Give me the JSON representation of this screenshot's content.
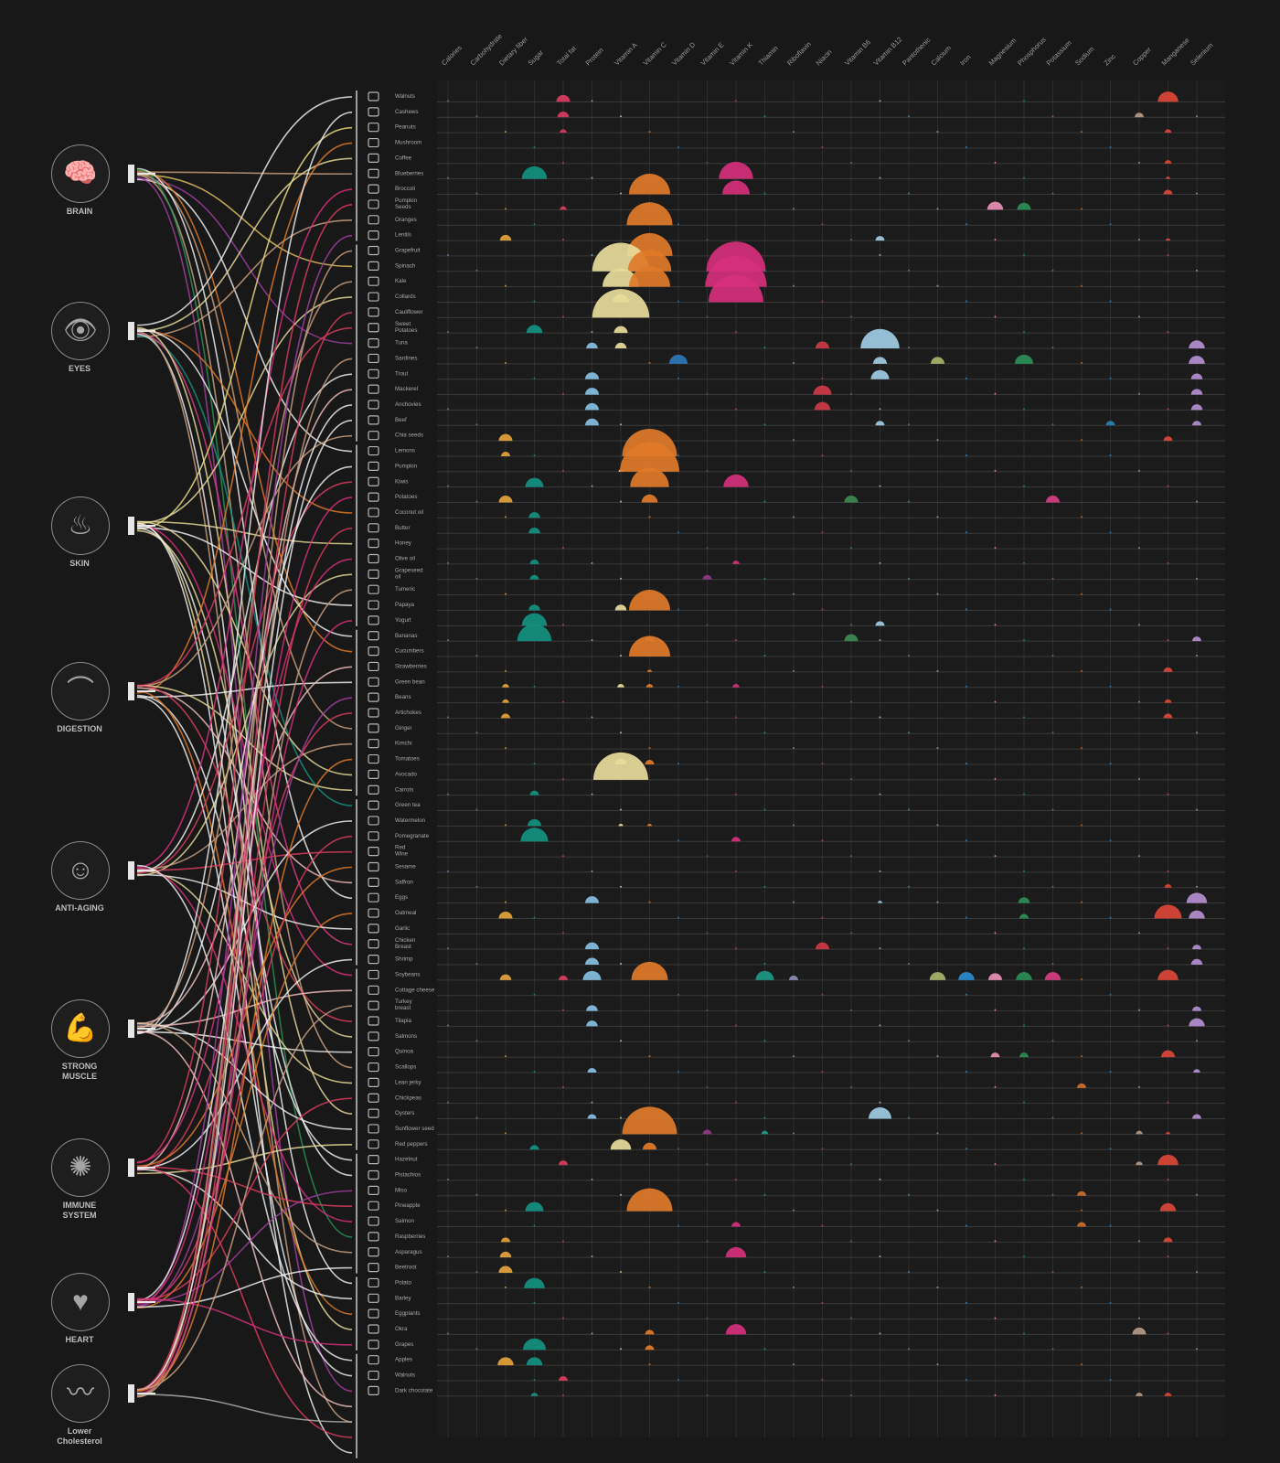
{
  "benefits": [
    {
      "id": "brain",
      "label": "BRAIN",
      "icon": "brain-icon",
      "glyph": "🧠",
      "foods": [
        0,
        1,
        2,
        3,
        4,
        5,
        6,
        7,
        8,
        9
      ]
    },
    {
      "id": "eyes",
      "label": "EYES",
      "icon": "eye-icon",
      "glyph": "👁",
      "foods": [
        10,
        11,
        12,
        13,
        14,
        15,
        16,
        17,
        18,
        19,
        20,
        21,
        22
      ]
    },
    {
      "id": "skin",
      "label": "SKIN",
      "icon": "skin-icon",
      "glyph": "♨",
      "foods": [
        23,
        24,
        25,
        26,
        27,
        28,
        29,
        30,
        31,
        32,
        33,
        34
      ]
    },
    {
      "id": "digestion",
      "label": "DIGESTION",
      "icon": "stomach-icon",
      "glyph": "⌒",
      "foods": [
        35,
        36,
        37,
        38,
        39,
        40,
        41,
        42,
        43,
        44,
        45
      ]
    },
    {
      "id": "anti-aging",
      "label": "ANTI-AGING",
      "icon": "face-icon",
      "glyph": "☺",
      "foods": [
        46,
        47,
        48,
        49,
        50,
        51,
        52,
        53,
        54,
        55,
        56
      ]
    },
    {
      "id": "strong-muscle",
      "label": "STRONG\nMUSCLE",
      "icon": "arm-muscle-icon",
      "glyph": "💪",
      "foods": [
        57,
        58,
        59,
        60,
        61,
        62,
        63,
        64,
        65,
        66,
        67,
        68
      ]
    },
    {
      "id": "immune-system",
      "label": "IMMUNE\nSYSTEM",
      "icon": "virus-icon",
      "glyph": "✺",
      "foods": [
        69,
        70,
        71,
        72,
        73,
        74,
        75,
        76
      ]
    },
    {
      "id": "heart",
      "label": "HEART",
      "icon": "heart-icon",
      "glyph": "♥",
      "foods": [
        77,
        78,
        79,
        80,
        81
      ]
    },
    {
      "id": "lower-cholesterol",
      "label": "Lower\nCholesterol",
      "icon": "artery-icon",
      "glyph": "〰",
      "foods": [
        82,
        83,
        84,
        85,
        86,
        87,
        88
      ]
    }
  ],
  "nutrients": [
    "Calories",
    "Carbohydrate",
    "Dietary fiber",
    "Sugar",
    "Total fat",
    "Protein",
    "Vitamin A",
    "Vitamin C",
    "Vitamin D",
    "Vitamin E",
    "Vitamin K",
    "Thiamin",
    "Riboflavin",
    "Niacin",
    "Vitamin B6",
    "Vitamin B12",
    "Pantothenic",
    "Calcium",
    "Iron",
    "Magnesium",
    "Phosphorus",
    "Potassium",
    "Sodium",
    "Zinc",
    "Copper",
    "Manganese",
    "Selenium"
  ],
  "nutrient_colors": [
    "#8c6fc0",
    "#7a6fbe",
    "#e3a33a",
    "#129180",
    "#d93c5e",
    "#86bfe3",
    "#e8dc9a",
    "#e07a28",
    "#2b78b8",
    "#8d3a87",
    "#d62f7b",
    "#1c9a88",
    "#8f8fb8",
    "#cc3a47",
    "#3d8a4f",
    "#9fcbe3",
    "#4c8dbb",
    "#a7b46a",
    "#2c8bd1",
    "#ea8fb6",
    "#2a8f55",
    "#d83d83",
    "#cc6f30",
    "#2c7fb6",
    "#b49a86",
    "#db4536",
    "#b48fd2"
  ],
  "foods": [
    {
      "name": "Walnuts",
      "v": {
        "4": 0.3,
        "25": 0.45
      }
    },
    {
      "name": "Cashews",
      "v": {
        "4": 0.25,
        "24": 0.2
      }
    },
    {
      "name": "Peanuts",
      "v": {
        "4": 0.15,
        "25": 0.15
      }
    },
    {
      "name": "Mushroom",
      "v": {}
    },
    {
      "name": "Coffee",
      "v": {
        "25": 0.15
      }
    },
    {
      "name": "Blueberries",
      "v": {
        "3": 0.55,
        "10": 0.75,
        "25": 0.1
      }
    },
    {
      "name": "Broccoli",
      "v": {
        "7": 0.9,
        "10": 0.6,
        "25": 0.2
      }
    },
    {
      "name": "Pumpkin\nSeeds",
      "v": {
        "4": 0.15,
        "19": 0.35,
        "20": 0.3
      }
    },
    {
      "name": "Oranges",
      "v": {
        "7": 1.0
      }
    },
    {
      "name": "Lentils",
      "v": {
        "2": 0.25,
        "15": 0.2,
        "25": 0.1
      }
    },
    {
      "name": "Grapefruit",
      "v": {
        "7": 1.0
      }
    },
    {
      "name": "Spinach",
      "v": {
        "6": 1.25,
        "7": 0.95,
        "10": 1.3
      }
    },
    {
      "name": "Kale",
      "v": {
        "6": 0.8,
        "7": 0.9,
        "10": 1.35
      }
    },
    {
      "name": "Collards",
      "v": {
        "6": 0.35,
        "10": 1.2
      }
    },
    {
      "name": "Cauliflower",
      "v": {
        "6": 1.25
      }
    },
    {
      "name": "Sweet\nPotatoes",
      "v": {
        "3": 0.35,
        "6": 0.3
      }
    },
    {
      "name": "Tuna",
      "v": {
        "5": 0.25,
        "6": 0.25,
        "13": 0.3,
        "15": 0.85,
        "26": 0.35
      }
    },
    {
      "name": "Sardines",
      "v": {
        "8": 0.4,
        "15": 0.3,
        "17": 0.3,
        "20": 0.4,
        "26": 0.35
      }
    },
    {
      "name": "Trout",
      "v": {
        "5": 0.3,
        "15": 0.4,
        "26": 0.25
      }
    },
    {
      "name": "Mackerel",
      "v": {
        "5": 0.3,
        "13": 0.4,
        "26": 0.25
      }
    },
    {
      "name": "Anchovies",
      "v": {
        "5": 0.3,
        "13": 0.35,
        "26": 0.25
      }
    },
    {
      "name": "Beef",
      "v": {
        "5": 0.3,
        "15": 0.2,
        "23": 0.2,
        "26": 0.2
      }
    },
    {
      "name": "Chia seeds",
      "v": {
        "2": 0.3,
        "25": 0.2
      }
    },
    {
      "name": "Lemons",
      "v": {
        "2": 0.2,
        "7": 1.2
      }
    },
    {
      "name": "Pumpkin",
      "v": {
        "6": 0.1,
        "7": 1.3
      }
    },
    {
      "name": "Kiwis",
      "v": {
        "3": 0.4,
        "7": 0.85,
        "10": 0.55
      }
    },
    {
      "name": "Potatoes",
      "v": {
        "2": 0.3,
        "7": 0.35,
        "14": 0.3,
        "21": 0.3
      }
    },
    {
      "name": "Coconut oil",
      "v": {
        "3": 0.25
      }
    },
    {
      "name": "Butter",
      "v": {
        "3": 0.25
      }
    },
    {
      "name": "Honey",
      "v": {}
    },
    {
      "name": "Olive oil",
      "v": {
        "3": 0.2,
        "10": 0.15
      }
    },
    {
      "name": "Grapeseed\noil",
      "v": {
        "3": 0.2,
        "9": 0.2
      }
    },
    {
      "name": "Tumeric",
      "v": {}
    },
    {
      "name": "Papaya",
      "v": {
        "3": 0.25,
        "6": 0.25,
        "7": 0.9
      }
    },
    {
      "name": "Yogurt",
      "v": {
        "3": 0.55,
        "15": 0.2
      }
    },
    {
      "name": "Bananas",
      "v": {
        "3": 0.75,
        "7": 0.2,
        "14": 0.3,
        "26": 0.2
      }
    },
    {
      "name": "Cucumbers",
      "v": {
        "7": 0.9
      }
    },
    {
      "name": "Strawberries",
      "v": {
        "7": 0.1,
        "25": 0.2
      }
    },
    {
      "name": "Green bean",
      "v": {
        "2": 0.15,
        "6": 0.15,
        "7": 0.15,
        "10": 0.15
      }
    },
    {
      "name": "Beans",
      "v": {
        "2": 0.15,
        "25": 0.15
      }
    },
    {
      "name": "Artichokes",
      "v": {
        "2": 0.2,
        "25": 0.2
      }
    },
    {
      "name": "Ginger",
      "v": {}
    },
    {
      "name": "Kimchi",
      "v": {}
    },
    {
      "name": "Tomatoes",
      "v": {
        "6": 0.25,
        "7": 0.2
      }
    },
    {
      "name": "Avocado",
      "v": {
        "6": 1.2
      }
    },
    {
      "name": "Carrots",
      "v": {
        "3": 0.2
      }
    },
    {
      "name": "Green tea",
      "v": {}
    },
    {
      "name": "Watermelon",
      "v": {
        "3": 0.3,
        "6": 0.1,
        "7": 0.1
      }
    },
    {
      "name": "Pomegranate",
      "v": {
        "3": 0.6,
        "10": 0.2
      }
    },
    {
      "name": "Red\nWine",
      "v": {}
    },
    {
      "name": "Sesame",
      "v": {}
    },
    {
      "name": "Saffron",
      "v": {
        "25": 0.15
      }
    },
    {
      "name": "Eggs",
      "v": {
        "5": 0.3,
        "15": 0.1,
        "20": 0.25,
        "26": 0.45
      }
    },
    {
      "name": "Oatmeal",
      "v": {
        "2": 0.3,
        "20": 0.2,
        "25": 0.6,
        "26": 0.35
      }
    },
    {
      "name": "Garlic",
      "v": {}
    },
    {
      "name": "Chicken\nBreast",
      "v": {
        "5": 0.3,
        "13": 0.3,
        "26": 0.2
      }
    },
    {
      "name": "Shrimp",
      "v": {
        "5": 0.3,
        "26": 0.25
      }
    },
    {
      "name": "Soybeans",
      "v": {
        "2": 0.25,
        "4": 0.2,
        "5": 0.4,
        "7": 0.8,
        "11": 0.4,
        "12": 0.2,
        "17": 0.35,
        "18": 0.35,
        "19": 0.3,
        "20": 0.35,
        "21": 0.35,
        "25": 0.45
      }
    },
    {
      "name": "Cottage cheese",
      "v": {}
    },
    {
      "name": "Turkey\nbreast",
      "v": {
        "5": 0.25,
        "26": 0.2
      }
    },
    {
      "name": "Tilapia",
      "v": {
        "5": 0.25,
        "26": 0.35
      }
    },
    {
      "name": "Salmons",
      "v": {}
    },
    {
      "name": "Quinoa",
      "v": {
        "19": 0.2,
        "20": 0.2,
        "25": 0.3
      }
    },
    {
      "name": "Scallops",
      "v": {
        "5": 0.2,
        "26": 0.15
      }
    },
    {
      "name": "Lean jerky",
      "v": {
        "22": 0.2
      }
    },
    {
      "name": "Chickpeas",
      "v": {}
    },
    {
      "name": "Oysters",
      "v": {
        "5": 0.2,
        "15": 0.5,
        "26": 0.2
      }
    },
    {
      "name": "Sunflower seed",
      "v": {
        "7": 1.2,
        "9": 0.2,
        "11": 0.15,
        "24": 0.15,
        "25": 0.1
      }
    },
    {
      "name": "Red peppers",
      "v": {
        "3": 0.2,
        "6": 0.45,
        "7": 0.3
      }
    },
    {
      "name": "Hazelnut",
      "v": {
        "4": 0.2,
        "24": 0.15,
        "25": 0.45
      }
    },
    {
      "name": "Pistachios",
      "v": {}
    },
    {
      "name": "Miso",
      "v": {
        "22": 0.2
      }
    },
    {
      "name": "Pineapple",
      "v": {
        "3": 0.4,
        "7": 1.0,
        "25": 0.35
      }
    },
    {
      "name": "Salmon",
      "v": {
        "10": 0.2,
        "22": 0.2
      }
    },
    {
      "name": "Raspberries",
      "v": {
        "2": 0.2,
        "25": 0.2
      }
    },
    {
      "name": "Asparagus",
      "v": {
        "2": 0.25,
        "10": 0.45
      }
    },
    {
      "name": "Beetroot",
      "v": {
        "2": 0.3
      }
    },
    {
      "name": "Potato",
      "v": {
        "3": 0.45
      }
    },
    {
      "name": "Barley",
      "v": {}
    },
    {
      "name": "Eggplants",
      "v": {}
    },
    {
      "name": "Okra",
      "v": {
        "7": 0.2,
        "10": 0.45,
        "24": 0.3
      }
    },
    {
      "name": "Grapes",
      "v": {
        "3": 0.5,
        "7": 0.2
      }
    },
    {
      "name": "Apples",
      "v": {
        "2": 0.35,
        "3": 0.35
      }
    },
    {
      "name": "Walnuts",
      "v": {
        "4": 0.2
      }
    },
    {
      "name": "Dark chocolate",
      "v": {
        "3": 0.15,
        "24": 0.15,
        "25": 0.15
      }
    }
  ],
  "links": [
    [
      0,
      5,
      "#c8a080"
    ],
    [
      0,
      11,
      "#e0c060"
    ],
    [
      0,
      16,
      "#a040a0"
    ],
    [
      0,
      23,
      "#f0f0f0"
    ],
    [
      0,
      36,
      "#e07a28"
    ],
    [
      0,
      41,
      "#c8a080"
    ],
    [
      0,
      52,
      "#f0f0f0"
    ],
    [
      0,
      63,
      "#c8a080"
    ],
    [
      0,
      74,
      "#2a8f55"
    ],
    [
      0,
      84,
      "#a040a0"
    ],
    [
      1,
      0,
      "#f0f0f0"
    ],
    [
      1,
      4,
      "#e8dc9a"
    ],
    [
      1,
      8,
      "#c8a080"
    ],
    [
      1,
      27,
      "#e07a28"
    ],
    [
      1,
      35,
      "#f0f0f0"
    ],
    [
      1,
      46,
      "#129180"
    ],
    [
      1,
      55,
      "#d83d83"
    ],
    [
      1,
      66,
      "#e8dc9a"
    ],
    [
      1,
      77,
      "#f0f0f0"
    ],
    [
      1,
      86,
      "#c8a080"
    ],
    [
      2,
      2,
      "#f0e080"
    ],
    [
      2,
      13,
      "#e8dc9a"
    ],
    [
      2,
      29,
      "#e8dc9a"
    ],
    [
      2,
      33,
      "#f0f0f0"
    ],
    [
      2,
      44,
      "#e8dc9a"
    ],
    [
      2,
      57,
      "#d62f7b"
    ],
    [
      2,
      61,
      "#e8dc9a"
    ],
    [
      2,
      70,
      "#f0f0f0"
    ],
    [
      2,
      80,
      "#e8dc9a"
    ],
    [
      2,
      88,
      "#f0f0f0"
    ],
    [
      3,
      3,
      "#e07a28"
    ],
    [
      3,
      15,
      "#d93c5e"
    ],
    [
      3,
      22,
      "#c8a080"
    ],
    [
      3,
      38,
      "#f0f0f0"
    ],
    [
      3,
      45,
      "#e8dc9a"
    ],
    [
      3,
      51,
      "#f0c0c0"
    ],
    [
      3,
      60,
      "#d93c5e"
    ],
    [
      3,
      69,
      "#f0f0f0"
    ],
    [
      3,
      79,
      "#e07a28"
    ],
    [
      3,
      83,
      "#f0f0f0"
    ],
    [
      4,
      6,
      "#d62f7b"
    ],
    [
      4,
      18,
      "#f0f0f0"
    ],
    [
      4,
      25,
      "#d93c5e"
    ],
    [
      4,
      31,
      "#e8dc9a"
    ],
    [
      4,
      42,
      "#c8a080"
    ],
    [
      4,
      49,
      "#d93c5e"
    ],
    [
      4,
      54,
      "#f0f0f0"
    ],
    [
      4,
      64,
      "#e8dc9a"
    ],
    [
      4,
      73,
      "#d62f7b"
    ],
    [
      4,
      82,
      "#f0f0f0"
    ],
    [
      5,
      1,
      "#f0f0f0"
    ],
    [
      5,
      12,
      "#c8a080"
    ],
    [
      5,
      24,
      "#f0f0f0"
    ],
    [
      5,
      37,
      "#f0c0c0"
    ],
    [
      5,
      47,
      "#f0f0f0"
    ],
    [
      5,
      58,
      "#f0c0c0"
    ],
    [
      5,
      62,
      "#f0f0f0"
    ],
    [
      5,
      67,
      "#f0f0f0"
    ],
    [
      5,
      75,
      "#c8a080"
    ],
    [
      5,
      85,
      "#f0c0c0"
    ],
    [
      6,
      7,
      "#d93c5e"
    ],
    [
      6,
      19,
      "#f0c0c0"
    ],
    [
      6,
      30,
      "#d62f7b"
    ],
    [
      6,
      40,
      "#d93c5e"
    ],
    [
      6,
      50,
      "#e07a28"
    ],
    [
      6,
      56,
      "#f0f0f0"
    ],
    [
      6,
      68,
      "#e8dc9a"
    ],
    [
      6,
      72,
      "#d93c5e"
    ],
    [
      6,
      78,
      "#f0f0f0"
    ],
    [
      6,
      87,
      "#d93c5e"
    ],
    [
      7,
      9,
      "#a040a0"
    ],
    [
      7,
      20,
      "#f0f0f0"
    ],
    [
      7,
      26,
      "#d62f7b"
    ],
    [
      7,
      39,
      "#a040a0"
    ],
    [
      7,
      48,
      "#d93c5e"
    ],
    [
      7,
      53,
      "#e07a28"
    ],
    [
      7,
      65,
      "#d93c5e"
    ],
    [
      7,
      71,
      "#a040a0"
    ],
    [
      7,
      81,
      "#d62f7b"
    ],
    [
      7,
      76,
      "#f0f0f0"
    ],
    [
      8,
      10,
      "#c8a080"
    ],
    [
      8,
      14,
      "#d93c5e"
    ],
    [
      8,
      17,
      "#c8a080"
    ],
    [
      8,
      21,
      "#f0f0f0"
    ],
    [
      8,
      28,
      "#d93c5e"
    ],
    [
      8,
      32,
      "#c8a080"
    ],
    [
      8,
      34,
      "#d62f7b"
    ],
    [
      8,
      43,
      "#e07a28"
    ],
    [
      8,
      59,
      "#c8a080"
    ],
    [
      8,
      86,
      "#b0b0b0"
    ]
  ]
}
